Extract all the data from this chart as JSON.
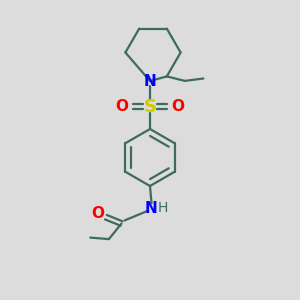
{
  "bg_color": "#dcdcdc",
  "bond_color": "#3d6b5e",
  "N_color": "#0000ff",
  "S_color": "#cccc00",
  "O_color": "#ff0000",
  "line_width": 1.6,
  "font_size": 10,
  "fig_size": [
    3.0,
    3.0
  ],
  "dpi": 100,
  "xlim": [
    0,
    10
  ],
  "ylim": [
    0,
    10
  ]
}
